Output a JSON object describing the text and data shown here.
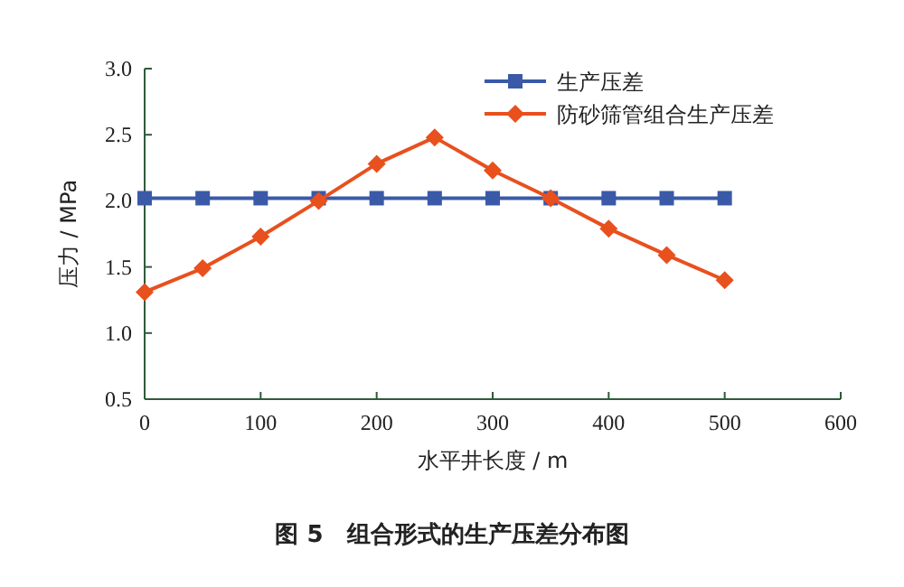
{
  "chart_data": {
    "type": "line",
    "title": "图 5　组合形式的生产压差分布图",
    "xlabel": "水平井长度 / m",
    "ylabel": "压力 / MPa",
    "x": [
      0,
      50,
      100,
      150,
      200,
      250,
      300,
      350,
      400,
      450,
      500
    ],
    "series": [
      {
        "name": "生产压差",
        "color": "#3a5aa8",
        "marker": "square",
        "values": [
          2.02,
          2.02,
          2.02,
          2.02,
          2.02,
          2.02,
          2.02,
          2.02,
          2.02,
          2.02,
          2.02
        ]
      },
      {
        "name": "防砂筛管组合生产压差",
        "color": "#e8501e",
        "marker": "diamond",
        "values": [
          1.31,
          1.49,
          1.73,
          2.0,
          2.28,
          2.48,
          2.23,
          2.02,
          1.79,
          1.59,
          1.4
        ]
      }
    ],
    "xlim": [
      0,
      600
    ],
    "xticks": [
      0,
      100,
      200,
      300,
      400,
      500,
      600
    ],
    "ylim": [
      0.5,
      3.0
    ],
    "yticks": [
      {
        "value": 0.5,
        "label": "0.5"
      },
      {
        "value": 1.0,
        "label": "1.0"
      },
      {
        "value": 1.5,
        "label": "1.5"
      },
      {
        "value": 2.0,
        "label": "2.0"
      },
      {
        "value": 2.5,
        "label": "2.5"
      },
      {
        "value": 3.0,
        "label": "3.0"
      }
    ],
    "grid": false,
    "legend": "top right",
    "line_style": "solid"
  }
}
